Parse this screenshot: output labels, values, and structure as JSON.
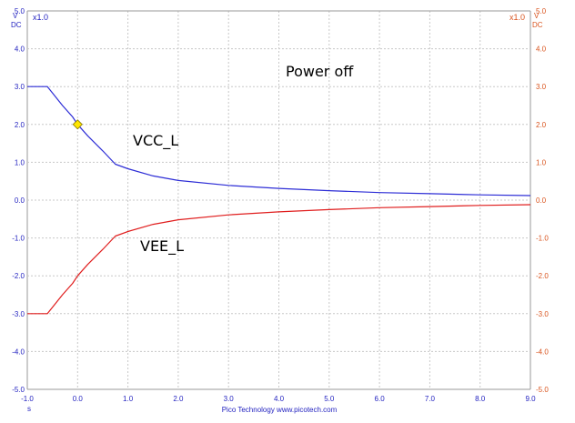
{
  "chart_data": {
    "type": "line",
    "x_range": [
      -1.0,
      9.0
    ],
    "y_range": [
      -5.0,
      5.0
    ],
    "grid": true,
    "x_ticks": [
      "-1.0",
      "0.0",
      "1.0",
      "2.0",
      "3.0",
      "4.0",
      "5.0",
      "6.0",
      "7.0",
      "8.0",
      "9.0"
    ],
    "y_ticks_left": [
      "5.0",
      "4.0",
      "3.0",
      "2.0",
      "1.0",
      "0.0",
      "-1.0",
      "-2.0",
      "-3.0",
      "-4.0",
      "-5.0"
    ],
    "y_ticks_right": [
      "5.0",
      "4.0",
      "3.0",
      "2.0",
      "1.0",
      "0.0",
      "-1.0",
      "-2.0",
      "-3.0",
      "-4.0",
      "-5.0"
    ],
    "x_unit": "s",
    "y_unit_left": [
      "V",
      "DC"
    ],
    "y_unit_right": [
      "V",
      "DC"
    ],
    "left_scale_label": "x1.0",
    "right_scale_label": "x1.0",
    "credit": "Pico Technology  www.picotech.com",
    "annotations": [
      "Power off",
      "VCC_L",
      "VEE_L"
    ],
    "marker": {
      "x": 0.0,
      "y": 2.0,
      "color": "#ffe600"
    },
    "series": [
      {
        "color": "#2d2dd6",
        "points": [
          [
            -1.0,
            3.0
          ],
          [
            -0.6,
            3.0
          ],
          [
            -0.5,
            2.83
          ],
          [
            -0.3,
            2.5
          ],
          [
            -0.1,
            2.2
          ],
          [
            0.0,
            2.0
          ],
          [
            0.2,
            1.7
          ],
          [
            0.5,
            1.3
          ],
          [
            0.75,
            0.95
          ],
          [
            1.0,
            0.83
          ],
          [
            1.5,
            0.64
          ],
          [
            2.0,
            0.52
          ],
          [
            3.0,
            0.39
          ],
          [
            4.0,
            0.31
          ],
          [
            5.0,
            0.25
          ],
          [
            6.0,
            0.2
          ],
          [
            7.0,
            0.17
          ],
          [
            8.0,
            0.14
          ],
          [
            9.0,
            0.12
          ]
        ]
      },
      {
        "color": "#e01e1e",
        "points": [
          [
            -1.0,
            -3.0
          ],
          [
            -0.6,
            -3.0
          ],
          [
            -0.5,
            -2.83
          ],
          [
            -0.3,
            -2.5
          ],
          [
            -0.1,
            -2.2
          ],
          [
            0.0,
            -2.0
          ],
          [
            0.2,
            -1.7
          ],
          [
            0.5,
            -1.3
          ],
          [
            0.75,
            -0.95
          ],
          [
            1.0,
            -0.83
          ],
          [
            1.5,
            -0.64
          ],
          [
            2.0,
            -0.52
          ],
          [
            3.0,
            -0.39
          ],
          [
            4.0,
            -0.31
          ],
          [
            5.0,
            -0.25
          ],
          [
            6.0,
            -0.2
          ],
          [
            7.0,
            -0.17
          ],
          [
            8.0,
            -0.14
          ],
          [
            9.0,
            -0.12
          ]
        ]
      }
    ]
  }
}
